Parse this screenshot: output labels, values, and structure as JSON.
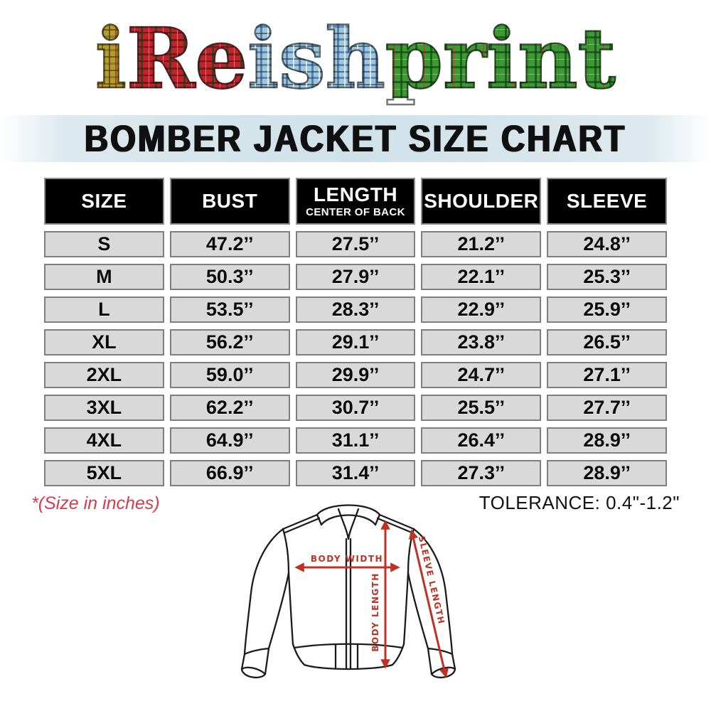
{
  "logo": {
    "segments": [
      {
        "text": "i",
        "pattern": "gold-tartan"
      },
      {
        "text": "Re",
        "pattern": "red-tartan"
      },
      {
        "text": "ish",
        "pattern": "blue-tartan"
      },
      {
        "text": "print",
        "pattern": "green-tartan"
      }
    ]
  },
  "title": "BOMBER JACKET SIZE CHART",
  "chart_data": {
    "type": "table",
    "title": "BOMBER JACKET SIZE CHART",
    "columns": [
      "SIZE",
      "BUST",
      "LENGTH",
      "SHOULDER",
      "SLEEVE"
    ],
    "length_column_subtitle": "CENTER OF BACK",
    "rows": [
      [
        "S",
        "47.2’’",
        "27.5’’",
        "21.2’’",
        "24.8’’"
      ],
      [
        "M",
        "50.3’’",
        "27.9’’",
        "22.1’’",
        "25.3’’"
      ],
      [
        "L",
        "53.5’’",
        "28.3’’",
        "22.9’’",
        "25.9’’"
      ],
      [
        "XL",
        "56.2’’",
        "29.1’’",
        "23.8’’",
        "26.5’’"
      ],
      [
        "2XL",
        "59.0’’",
        "29.9’’",
        "24.7’’",
        "27.1’’"
      ],
      [
        "3XL",
        "62.2’’",
        "30.7’’",
        "25.5’’",
        "27.7’’"
      ],
      [
        "4XL",
        "64.9’’",
        "31.1’’",
        "26.4’’",
        "28.9’’"
      ],
      [
        "5XL",
        "66.9’’",
        "31.4’’",
        "27.3’’",
        "28.9’’"
      ]
    ],
    "units": "inches",
    "tolerance": "0.4\"-1.2\""
  },
  "notes": {
    "size_note": "*(Size in inches)",
    "tolerance_label": "TOLERANCE: 0.4\"-1.2\""
  },
  "diagram": {
    "labels": {
      "body_width": "BODY WIDTH",
      "body_length": "BODY LENGTH",
      "sleeve_length": "SLEEVE LENGTH"
    }
  },
  "colors": {
    "title_band": "#cfe1e9",
    "header_bg": "#000000",
    "cell_bg": "#d9d9d9",
    "cell_border": "#7f7f7f",
    "note_red": "#d23c4c",
    "arrow_red": "#bf3124"
  }
}
